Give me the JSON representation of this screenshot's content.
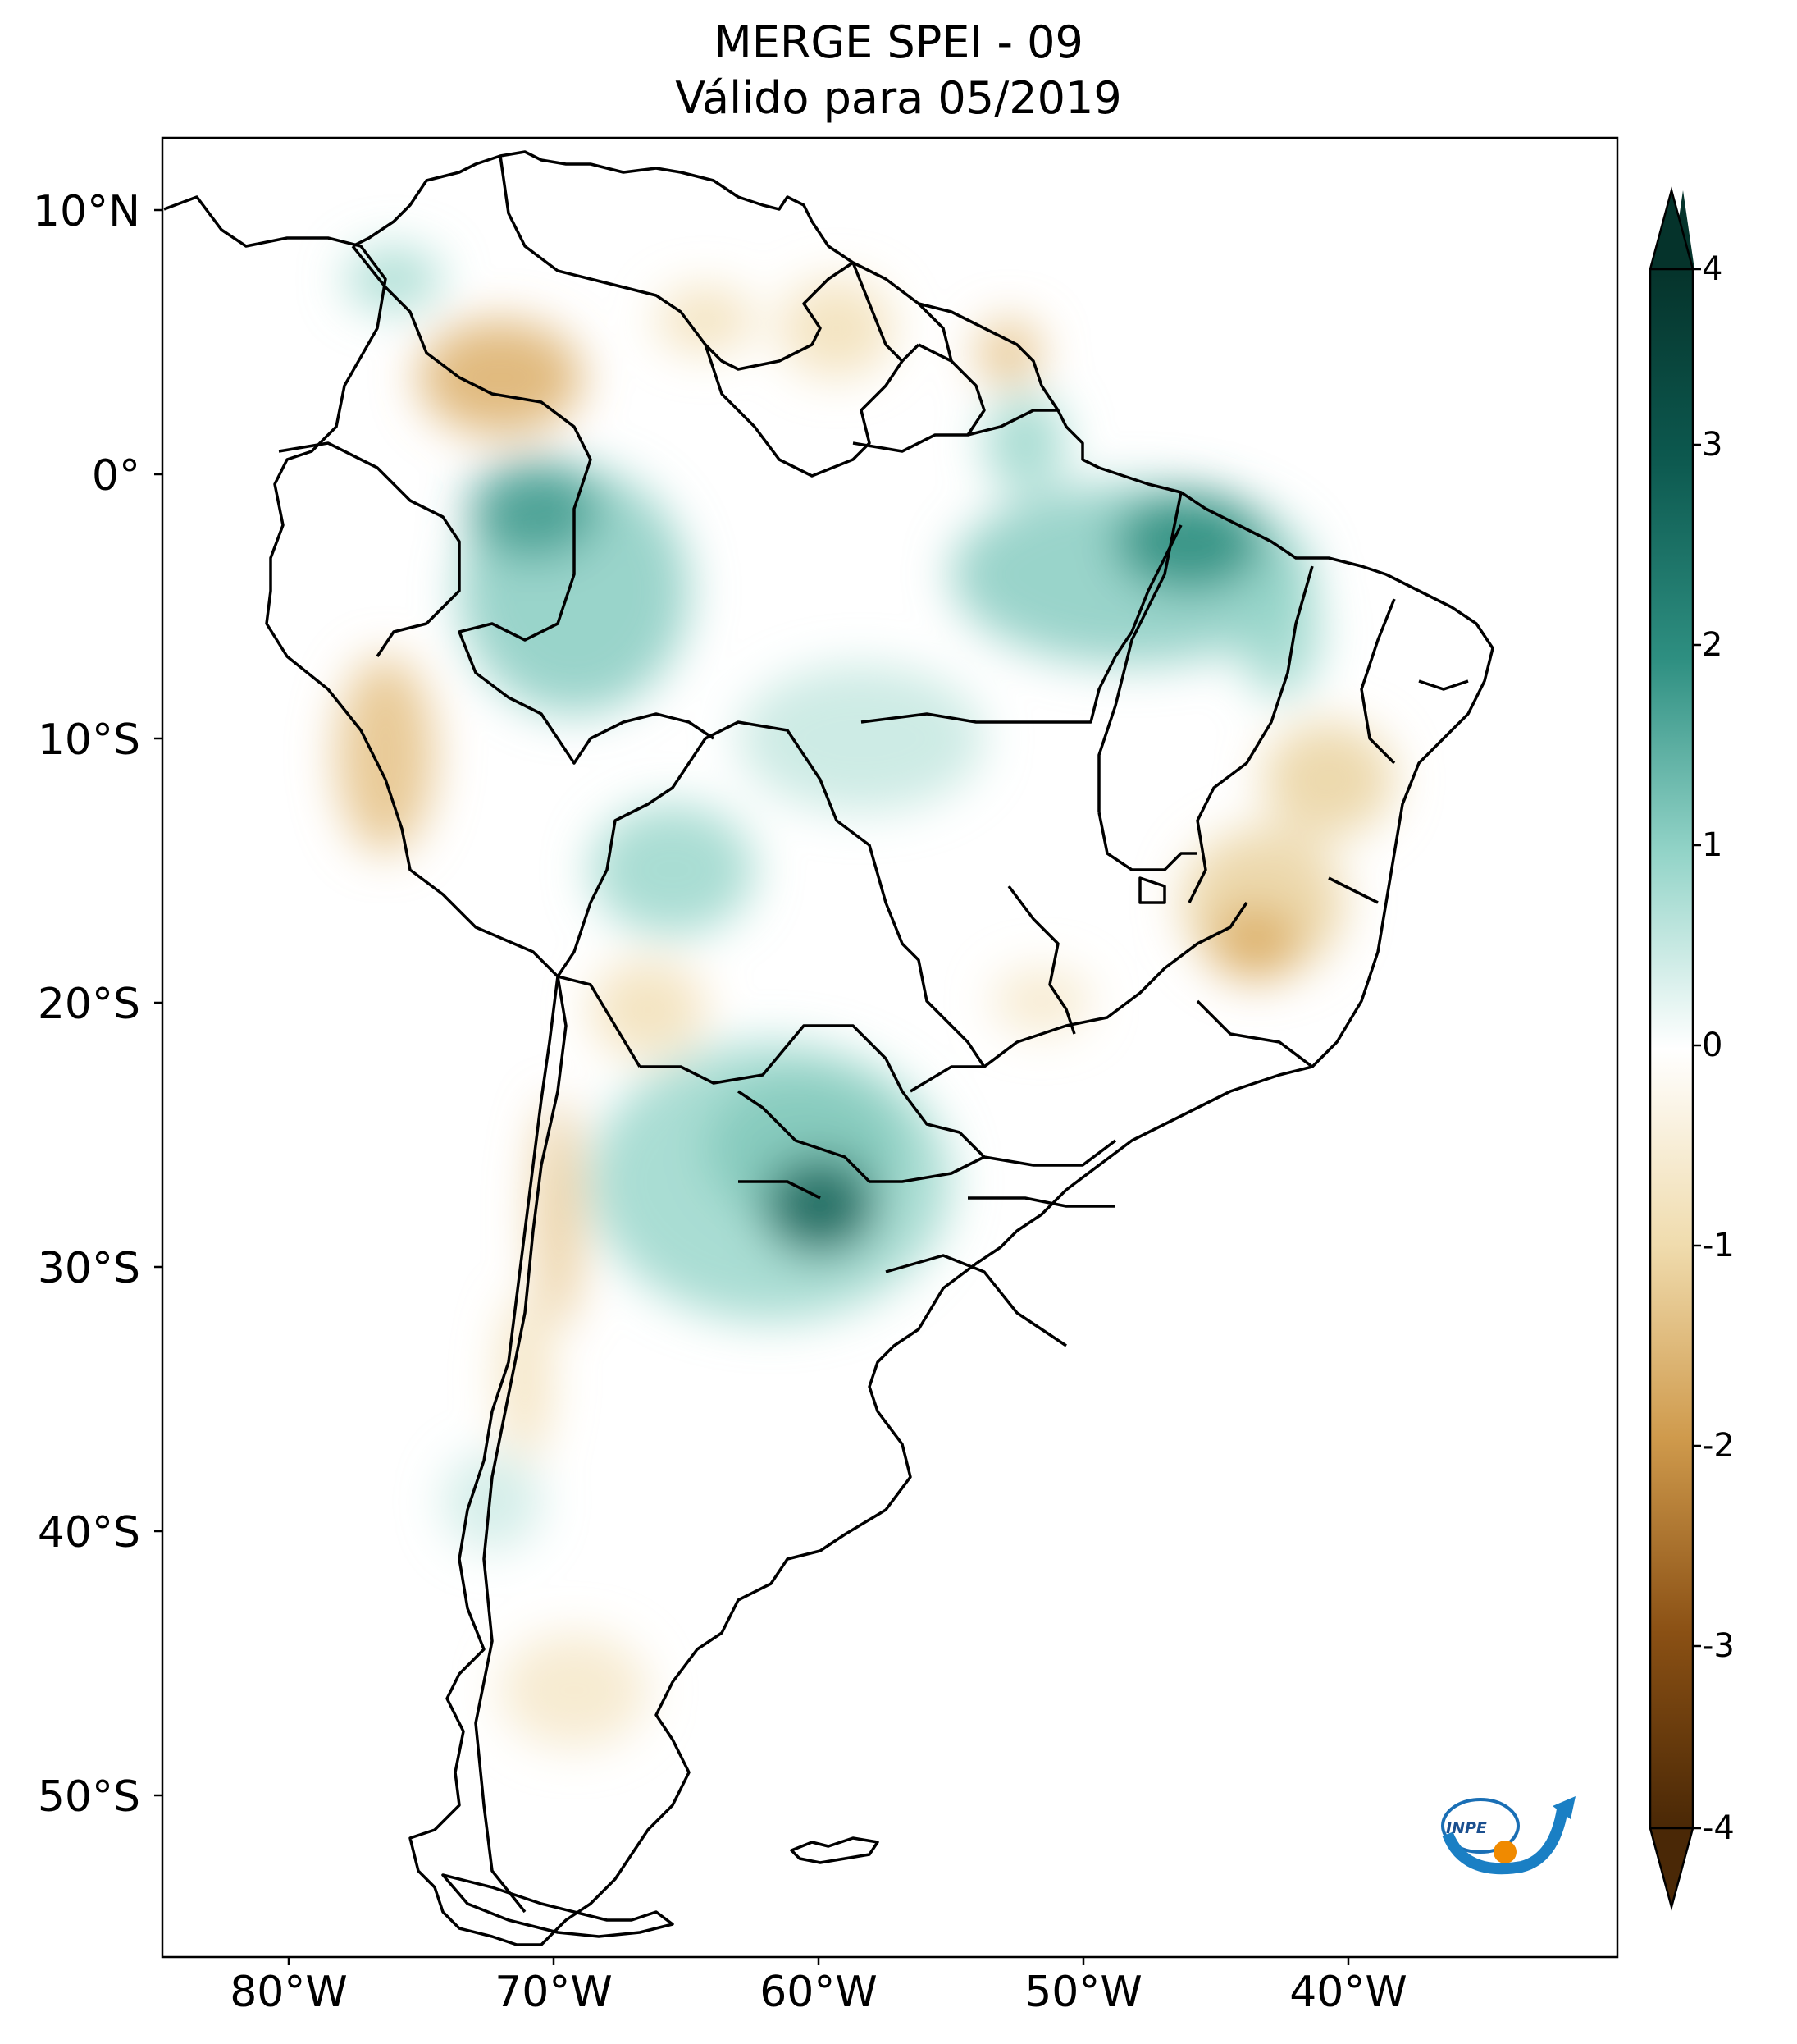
{
  "title": {
    "line1": "MERGE   SPEI - 09",
    "line2": "Válido para 05/2019"
  },
  "axes": {
    "lat_labels": [
      "10°N",
      "0°",
      "10°S",
      "20°S",
      "30°S",
      "40°S",
      "50°S"
    ],
    "lon_labels": [
      "80°W",
      "70°W",
      "60°W",
      "50°W",
      "40°W"
    ]
  },
  "colorbar": {
    "labels": [
      "4",
      "3",
      "2",
      "1",
      "0",
      "-1",
      "-2",
      "-3",
      "-4"
    ],
    "colors": {
      "max": "#05332b",
      "high": "#1f7f72",
      "mid_high": "#7fc9bd",
      "neutral": "#ffffff",
      "mid_low": "#e9cf98",
      "low": "#a8681f",
      "min": "#4a2806"
    }
  },
  "logo": {
    "text": "INPE",
    "icon": "inpe-logo-icon"
  }
}
